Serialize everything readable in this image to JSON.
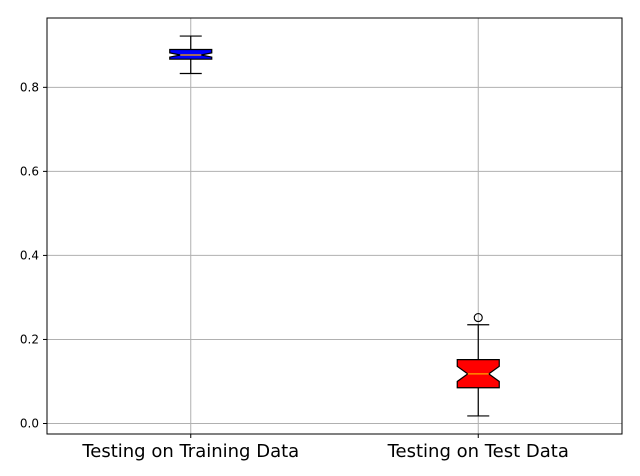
{
  "chart_data": {
    "type": "box",
    "categories": [
      "Testing on Training Data",
      "Testing on Test Data"
    ],
    "ylim": [
      -0.025,
      0.965
    ],
    "yticks": [
      0.0,
      0.2,
      0.4,
      0.6,
      0.8
    ],
    "ytick_labels": [
      "0.0",
      "0.2",
      "0.4",
      "0.6",
      "0.8"
    ],
    "grid": true,
    "notched": true,
    "boxes": [
      {
        "name": "Testing on Training Data",
        "color": "#0000ff",
        "whisker_low": 0.833,
        "q1": 0.867,
        "median": 0.877,
        "q3": 0.89,
        "whisker_high": 0.922,
        "notch_low": 0.872,
        "notch_high": 0.882,
        "outliers": []
      },
      {
        "name": "Testing on Test Data",
        "color": "#ff0000",
        "whisker_low": 0.018,
        "q1": 0.085,
        "median": 0.118,
        "q3": 0.152,
        "whisker_high": 0.235,
        "notch_low": 0.1,
        "notch_high": 0.136,
        "outliers": [
          0.252
        ]
      }
    ],
    "median_color": "#ffa500"
  }
}
